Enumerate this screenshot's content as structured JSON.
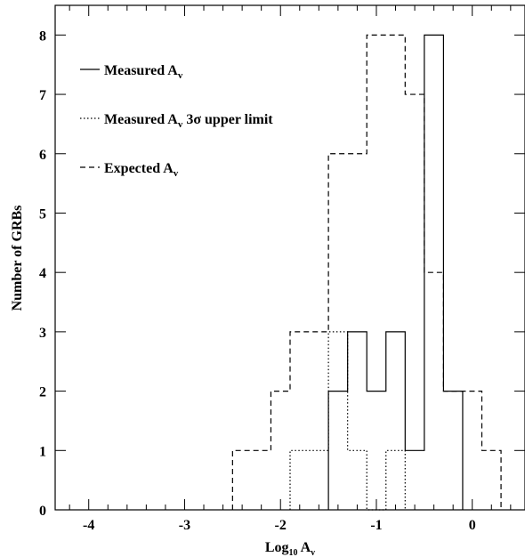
{
  "chart_data": {
    "type": "histogram-step",
    "xlabel": "Log",
    "xlabel_sub": "10",
    "xlabel_tail": " A",
    "xlabel_tail_sub": "v",
    "ylabel": "Number of GRBs",
    "xlim": [
      -4.35,
      0.55
    ],
    "ylim": [
      0,
      8.5
    ],
    "x_ticks": [
      -4,
      -3,
      -2,
      -1,
      0
    ],
    "y_ticks": [
      0,
      1,
      2,
      3,
      4,
      5,
      6,
      7,
      8
    ],
    "legend_position": "top-left",
    "series": [
      {
        "name": "Measured A",
        "name_sub": "v",
        "style": "solid",
        "edges": [
          -1.5,
          -1.3,
          -1.1,
          -0.9,
          -0.7,
          -0.5,
          -0.3,
          -0.1
        ],
        "counts": [
          2,
          3,
          2,
          3,
          1,
          8,
          2
        ]
      },
      {
        "name": "Measured A",
        "name_sub": "v",
        "name_tail": " 3σ upper limit",
        "style": "dotted",
        "edges": [
          -1.9,
          -1.5,
          -1.3,
          -1.1,
          -0.9,
          -0.7
        ],
        "counts": [
          1,
          3,
          1,
          0,
          1
        ]
      },
      {
        "name": "Expected A",
        "name_sub": "v",
        "style": "dashed",
        "edges": [
          -2.5,
          -2.1,
          -1.9,
          -1.5,
          -1.1,
          -0.7,
          -0.5,
          -0.3,
          -0.1,
          0.1,
          0.3
        ],
        "counts": [
          1,
          2,
          3,
          6,
          8,
          7,
          4,
          2,
          2,
          1
        ]
      }
    ]
  }
}
